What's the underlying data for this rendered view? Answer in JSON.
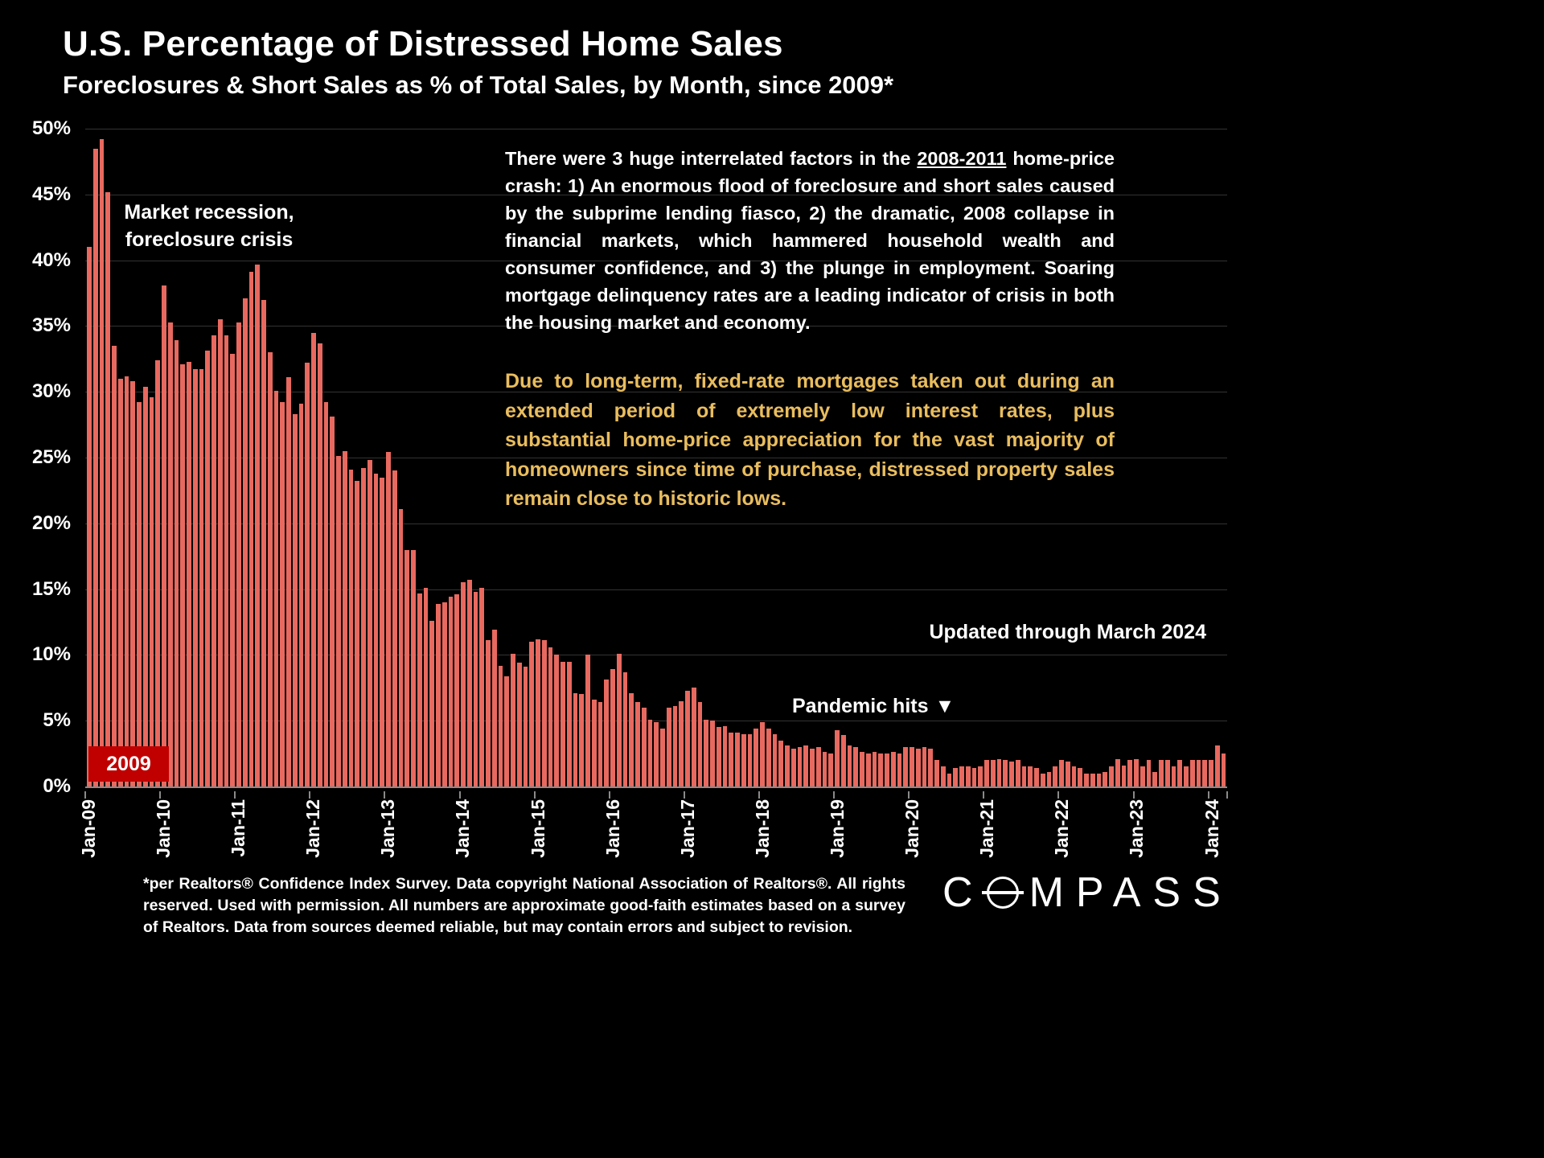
{
  "title": "U.S. Percentage of Distressed Home Sales",
  "subtitle": "Foreclosures & Short Sales as % of Total Sales, by Month, since 2009*",
  "analysis": {
    "part1": "There were 3 huge interrelated factors in the ",
    "underlined": "2008-2011",
    "part2": " home-price crash:  1) An enormous flood of foreclosure and short sales caused by the subprime lending fiasco, 2) the dramatic, 2008 collapse in  financial markets, which hammered household wealth and consumer confidence, and 3) the plunge in employment. Soaring mortgage delinquency rates are a leading indicator of crisis in both the housing market and economy."
  },
  "gold_note": "Due to long-term, fixed-rate mortgages taken out during an extended period of extremely low interest rates, plus substantial home-price appreciation for the vast majority of homeowners since time of purchase, distressed property sales remain close to historic lows.",
  "annotations": {
    "recession_line1": "Market recession,",
    "recession_line2": "foreclosure crisis",
    "year_box": "2009",
    "pandemic_label": "Pandemic hits",
    "pandemic_icon": "▼",
    "updated": "Updated through March 2024"
  },
  "footnote": "*per Realtors® Confidence Index Survey. Data copyright National Association of Realtors®. All rights reserved. Used with permission. All numbers are approximate good-faith estimates based on a survey of Realtors. Data from sources deemed reliable, but may contain errors and subject to revision.",
  "logo": {
    "first": "C",
    "rest": "MPASS"
  },
  "colors": {
    "background": "#000000",
    "bar": "#e8695f",
    "year_box": "#c00000",
    "gold_text": "#e9bd5e",
    "grid": "#333333"
  },
  "chart_data": {
    "type": "bar",
    "title": "U.S. Percentage of Distressed Home Sales",
    "xlabel": "",
    "ylabel": "",
    "ylim": [
      0,
      50
    ],
    "y_ticks": [
      50,
      45,
      40,
      35,
      30,
      25,
      20,
      15,
      10,
      5,
      0
    ],
    "x_tick_labels": [
      "Jan-09",
      "Jan-10",
      "Jan-11",
      "Jan-12",
      "Jan-13",
      "Jan-14",
      "Jan-15",
      "Jan-16",
      "Jan-17",
      "Jan-18",
      "Jan-19",
      "Jan-20",
      "Jan-21",
      "Jan-22",
      "Jan-23",
      "Jan-24"
    ],
    "x_tick_indices": [
      0,
      12,
      24,
      36,
      48,
      60,
      72,
      84,
      96,
      108,
      120,
      132,
      144,
      156,
      168,
      180
    ],
    "period_start": "Jan-09",
    "period_end": "Mar-24",
    "grid": true,
    "values": [
      41.0,
      48.5,
      49.2,
      45.2,
      33.5,
      31.0,
      31.2,
      30.8,
      29.2,
      30.4,
      29.6,
      32.4,
      38.1,
      35.3,
      33.9,
      32.1,
      32.3,
      31.7,
      31.7,
      33.1,
      34.3,
      35.5,
      34.3,
      32.9,
      35.3,
      37.1,
      39.1,
      39.7,
      37.0,
      33.0,
      30.1,
      29.2,
      31.1,
      28.3,
      29.1,
      32.2,
      34.5,
      33.7,
      29.2,
      28.1,
      25.1,
      25.5,
      24.1,
      23.2,
      24.2,
      24.8,
      23.8,
      23.5,
      25.4,
      24.0,
      21.1,
      18.0,
      18.0,
      14.7,
      15.1,
      12.6,
      13.9,
      14.0,
      14.4,
      14.6,
      15.5,
      15.7,
      14.8,
      15.1,
      11.1,
      11.9,
      9.2,
      8.4,
      10.1,
      9.4,
      9.1,
      11.0,
      11.2,
      11.1,
      10.6,
      10.0,
      9.5,
      9.5,
      7.1,
      7.0,
      10.0,
      6.6,
      6.4,
      8.1,
      8.9,
      10.1,
      8.7,
      7.1,
      6.4,
      6.0,
      5.1,
      4.9,
      4.4,
      6.0,
      6.1,
      6.5,
      7.3,
      7.5,
      6.4,
      5.1,
      5.0,
      4.5,
      4.6,
      4.1,
      4.1,
      4.0,
      4.0,
      4.4,
      4.9,
      4.4,
      4.0,
      3.5,
      3.1,
      2.9,
      3.0,
      3.1,
      2.9,
      3.0,
      2.6,
      2.5,
      4.3,
      3.9,
      3.1,
      3.0,
      2.6,
      2.5,
      2.6,
      2.5,
      2.5,
      2.6,
      2.5,
      3.0,
      3.0,
      2.9,
      3.0,
      2.9,
      2.0,
      1.5,
      1.0,
      1.4,
      1.5,
      1.5,
      1.4,
      1.5,
      2.0,
      2.0,
      2.1,
      2.0,
      1.9,
      2.0,
      1.5,
      1.5,
      1.4,
      1.0,
      1.1,
      1.5,
      2.0,
      1.9,
      1.5,
      1.4,
      1.0,
      1.0,
      1.0,
      1.1,
      1.5,
      2.1,
      1.6,
      2.0,
      2.1,
      1.5,
      2.0,
      1.1,
      2.0,
      2.0,
      1.5,
      2.0,
      1.5,
      2.0,
      2.0,
      2.0,
      2.0,
      3.1,
      2.5
    ]
  }
}
